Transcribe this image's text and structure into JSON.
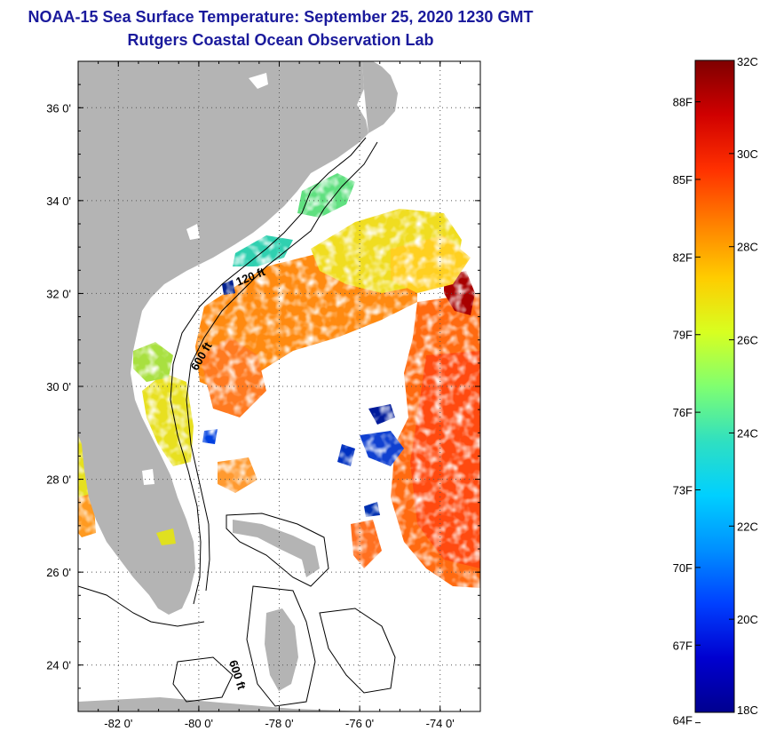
{
  "title": {
    "line1": "NOAA-15 Sea Surface Temperature:  September 25, 2020 1230 GMT",
    "line2": "Rutgers Coastal Ocean Observation Lab"
  },
  "map": {
    "lon_range": [
      -83.0,
      -73.0
    ],
    "lat_range": [
      23.0,
      37.0
    ],
    "lon_ticks": [
      {
        "value": -82,
        "label": "-82 0'"
      },
      {
        "value": -80,
        "label": "-80 0'"
      },
      {
        "value": -78,
        "label": "-78 0'"
      },
      {
        "value": -76,
        "label": "-76 0'"
      },
      {
        "value": -74,
        "label": "-74 0'"
      }
    ],
    "lat_ticks": [
      {
        "value": 36,
        "label": "36 0'"
      },
      {
        "value": 34,
        "label": "34 0'"
      },
      {
        "value": 32,
        "label": "32 0'"
      },
      {
        "value": 30,
        "label": "30 0'"
      },
      {
        "value": 28,
        "label": "28 0'"
      },
      {
        "value": 26,
        "label": "26 0'"
      },
      {
        "value": 24,
        "label": "24 0'"
      }
    ],
    "contour_labels": [
      "120 ft",
      "600 ft",
      "600 ft"
    ],
    "colors": {
      "land": "#b4b4b4",
      "grid": "#555555"
    }
  },
  "colorbar": {
    "celsius_range": [
      18,
      32
    ],
    "celsius_labels": [
      {
        "value": 32,
        "label": "32C"
      },
      {
        "value": 30,
        "label": "30C"
      },
      {
        "value": 28,
        "label": "28C"
      },
      {
        "value": 26,
        "label": "26C"
      },
      {
        "value": 24,
        "label": "24C"
      },
      {
        "value": 22,
        "label": "22C"
      },
      {
        "value": 20,
        "label": "20C"
      },
      {
        "value": 18,
        "label": "18C"
      }
    ],
    "fahrenheit_labels": [
      {
        "value": 88,
        "label": "88F"
      },
      {
        "value": 85,
        "label": "85F"
      },
      {
        "value": 82,
        "label": "82F"
      },
      {
        "value": 79,
        "label": "79F"
      },
      {
        "value": 76,
        "label": "76F"
      },
      {
        "value": 73,
        "label": "73F"
      },
      {
        "value": 70,
        "label": "70F"
      },
      {
        "value": 67,
        "label": "67F"
      },
      {
        "value": 64,
        "label": "64F"
      }
    ],
    "gradient_stops": [
      "#7f0000",
      "#d00000",
      "#ff3000",
      "#ff8000",
      "#ffcc00",
      "#d8ff20",
      "#80ff70",
      "#30e0c0",
      "#00d0ff",
      "#0090ff",
      "#0040ff",
      "#0000d0",
      "#00008f"
    ]
  }
}
